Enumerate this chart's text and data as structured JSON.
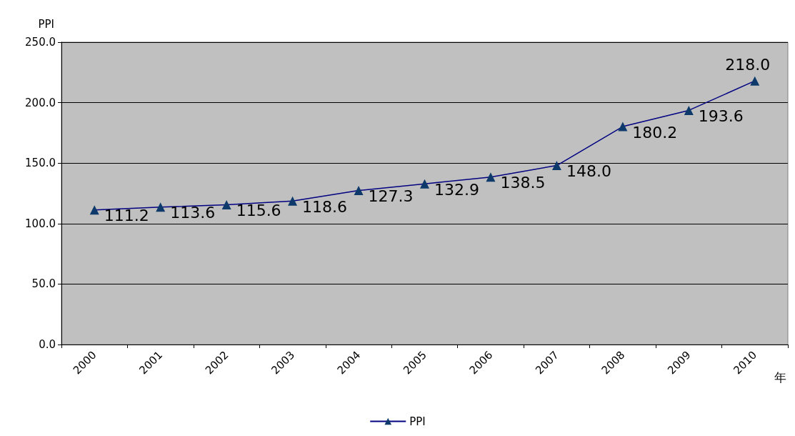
{
  "chart_data": {
    "type": "line",
    "ylabel": "PPI",
    "xlabel": "年",
    "categories": [
      "2000",
      "2001",
      "2002",
      "2003",
      "2004",
      "2005",
      "2006",
      "2007",
      "2008",
      "2009",
      "2010"
    ],
    "series": [
      {
        "name": "PPI",
        "color": "#000080",
        "values": [
          111.2,
          113.6,
          115.6,
          118.6,
          127.3,
          132.9,
          138.5,
          148.0,
          180.2,
          193.6,
          218.0
        ],
        "value_labels": [
          "111.2",
          "113.6",
          "115.6",
          "118.6",
          "127.3",
          "132.9",
          "138.5",
          "148.0",
          "180.2",
          "193.6",
          "218.0"
        ]
      }
    ],
    "ylim": [
      0,
      250
    ],
    "yticks": [
      {
        "value": 0,
        "label": "0.0"
      },
      {
        "value": 50,
        "label": "50.0"
      },
      {
        "value": 100,
        "label": "100.0"
      },
      {
        "value": 150,
        "label": "150.0"
      },
      {
        "value": 200,
        "label": "200.0"
      },
      {
        "value": 250,
        "label": "250.0"
      }
    ],
    "grid": "y",
    "legend": "bottom",
    "marker": "triangle",
    "line_style": "solid"
  }
}
